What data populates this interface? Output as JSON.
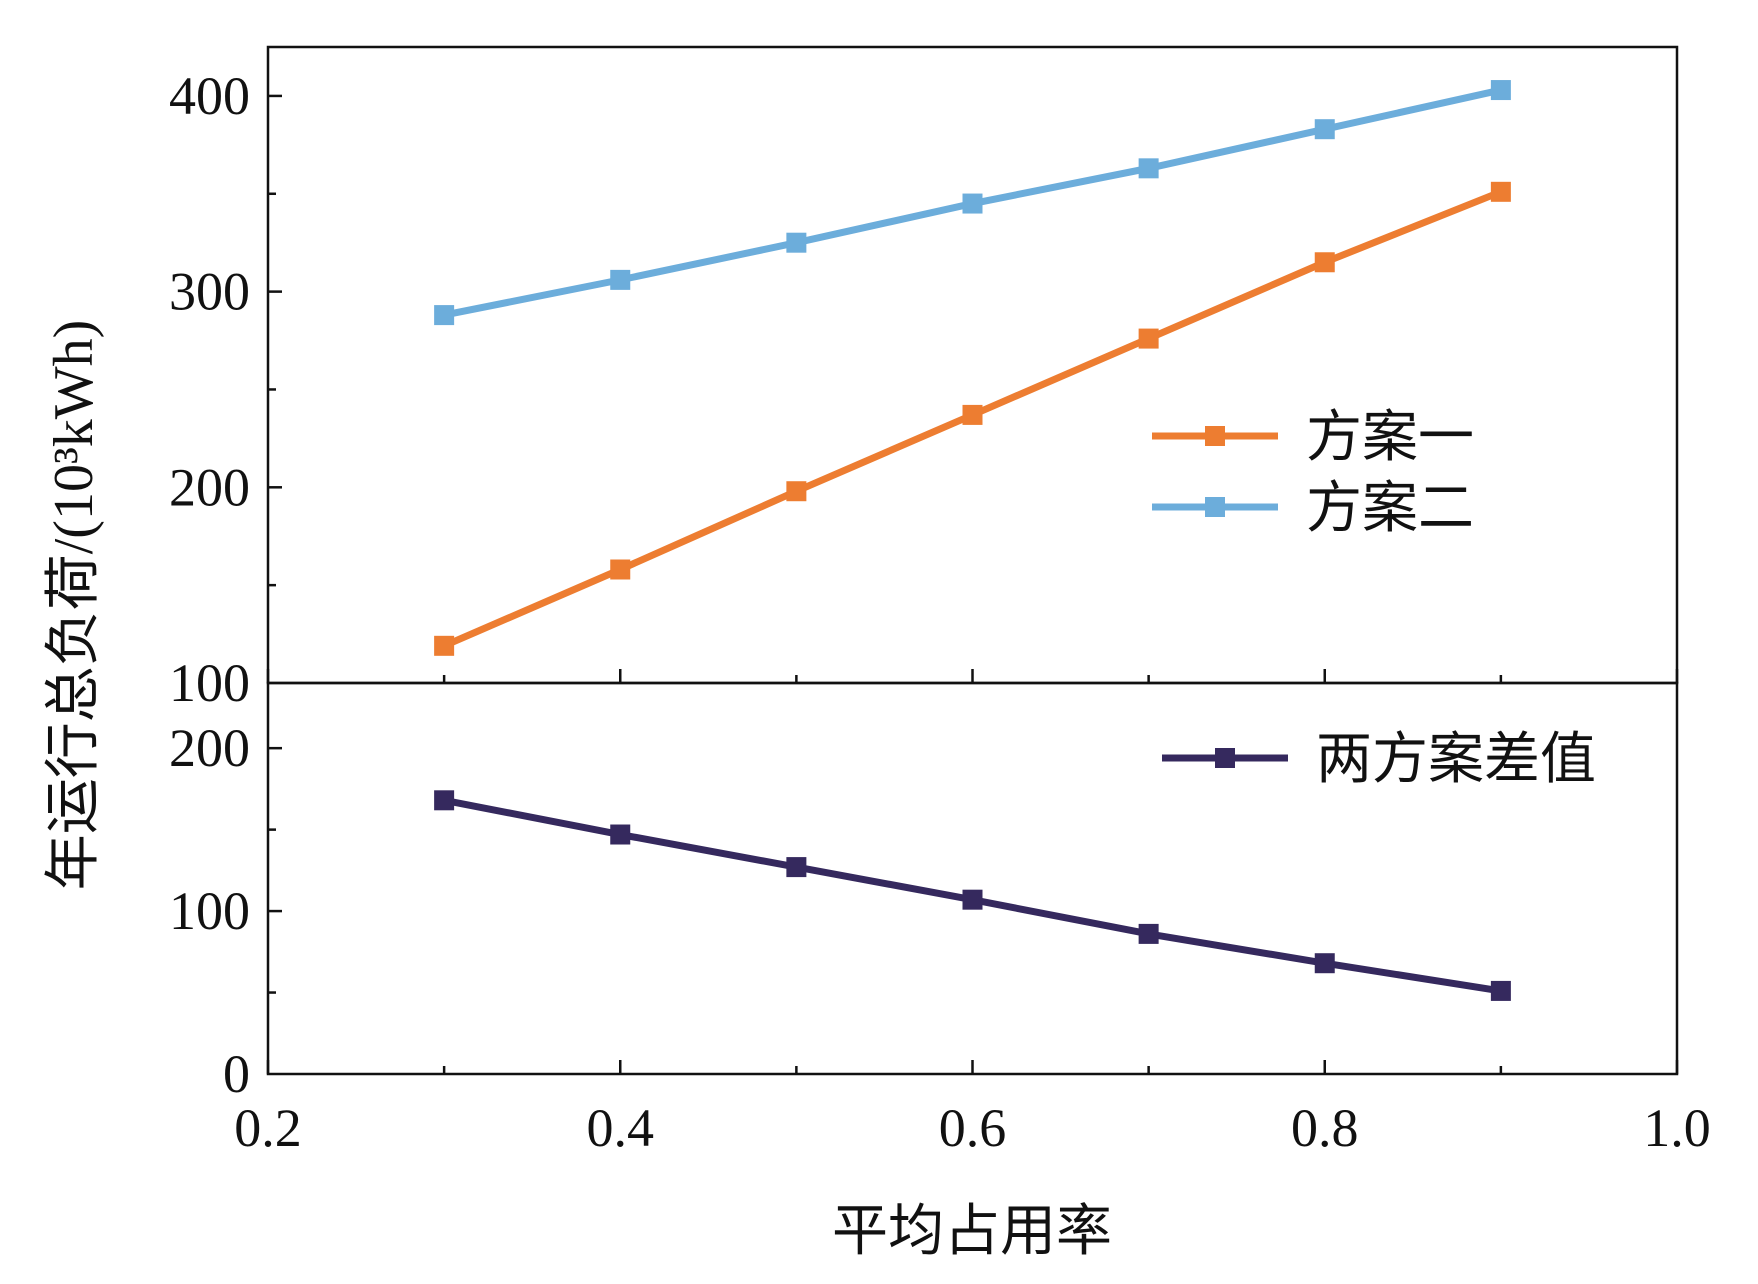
{
  "chart_data": [
    {
      "type": "line",
      "panel": "top",
      "title": "",
      "xlabel": "平均占用率",
      "ylabel": "年运行总负荷/(10³kWh)",
      "x": [
        0.3,
        0.4,
        0.5,
        0.6,
        0.7,
        0.8,
        0.9
      ],
      "xlim": [
        0.2,
        1.0
      ],
      "ylim": [
        100,
        425
      ],
      "yticks": [
        100,
        200,
        300,
        400
      ],
      "ytick_labels": [
        "100",
        "200",
        "300",
        "400"
      ],
      "series": [
        {
          "name": "方案一",
          "color": "#ED7D31",
          "marker": "square",
          "values": [
            119,
            158,
            198,
            237,
            276,
            315,
            351
          ]
        },
        {
          "name": "方案二",
          "color": "#6CADDB",
          "marker": "square",
          "values": [
            288,
            306,
            325,
            345,
            363,
            383,
            403
          ]
        }
      ],
      "legend_position": "center-right",
      "grid": false
    },
    {
      "type": "line",
      "panel": "bottom",
      "title": "",
      "x": [
        0.3,
        0.4,
        0.5,
        0.6,
        0.7,
        0.8,
        0.9
      ],
      "xlim": [
        0.2,
        1.0
      ],
      "xticks": [
        0.2,
        0.4,
        0.6,
        0.8,
        1.0
      ],
      "xtick_labels": [
        "0.2",
        "0.4",
        "0.6",
        "0.8",
        "1.0"
      ],
      "ylim": [
        0,
        240
      ],
      "yticks": [
        0,
        100,
        200
      ],
      "ytick_labels": [
        "0",
        "100",
        "200"
      ],
      "series": [
        {
          "name": "两方案差值",
          "color": "#35295E",
          "marker": "square",
          "values": [
            168,
            147,
            127,
            107,
            86,
            68,
            51
          ]
        }
      ],
      "legend_position": "top-right",
      "grid": false
    }
  ]
}
